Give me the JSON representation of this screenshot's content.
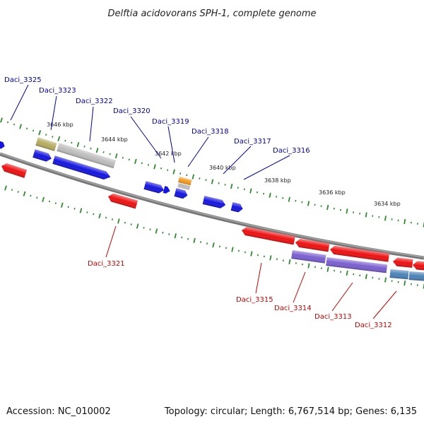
{
  "title": "Delftia acidovorans SPH-1, complete genome",
  "footer": {
    "accession": "Accession: NC_010002",
    "stats": "Topology: circular; Length: 6,767,514 bp; Genes: 6,135"
  },
  "colors": {
    "backbone": "#808080",
    "tick": "#2e8b2e",
    "forward_label": "#0000aa",
    "reverse_label": "#cc0000",
    "forward_gene": "#1515e0",
    "reverse_gene": "#ee1111",
    "purple_gene": "#7a5fd0",
    "steel_gene": "#4b82b8",
    "olive_gene": "#b5ab60",
    "grey_gene": "#bdbdbd",
    "orange_gene": "#f39a1c"
  },
  "scale_labels": [
    "3646 kbp",
    "3644 kbp",
    "3642 kbp",
    "3640 kbp",
    "3638 kbp",
    "3636 kbp",
    "3634 kbp"
  ],
  "forward_labels": [
    "Daci_3325",
    "Daci_3323",
    "Daci_3322",
    "Daci_3320",
    "Daci_3319",
    "Daci_3318",
    "Daci_3317",
    "Daci_3316"
  ],
  "reverse_labels": [
    "Daci_3321",
    "Daci_3315",
    "Daci_3314",
    "Daci_3313",
    "Daci_3312"
  ]
}
